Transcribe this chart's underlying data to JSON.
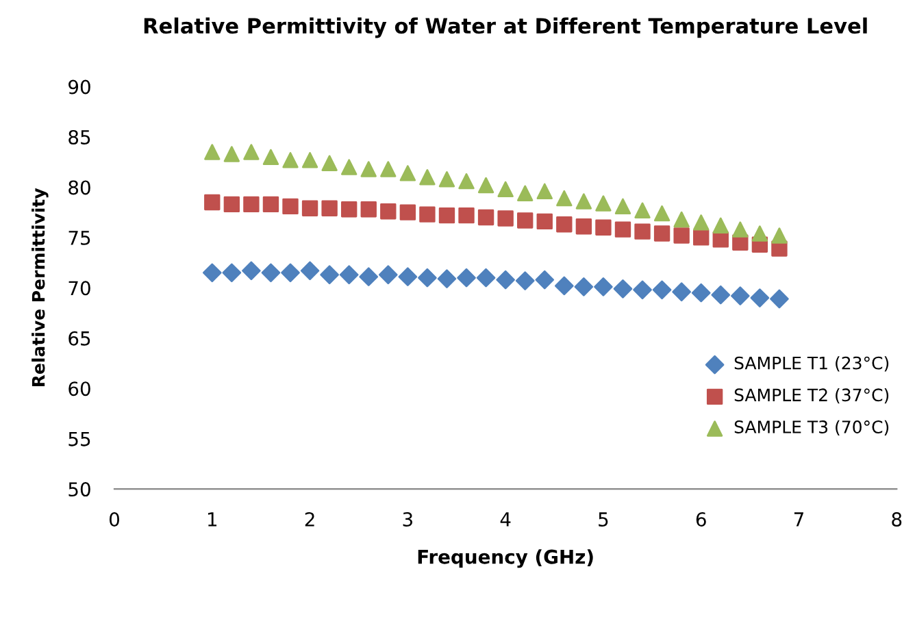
{
  "chart_data": {
    "type": "scatter",
    "title": "Relative Permittivity of Water at Different Temperature Level",
    "xlabel": "Frequency (GHz)",
    "ylabel": "Relative Permittivity",
    "x": [
      1.0,
      1.2,
      1.4,
      1.6,
      1.8,
      2.0,
      2.2,
      2.4,
      2.6,
      2.8,
      3.0,
      3.2,
      3.4,
      3.6,
      3.8,
      4.0,
      4.2,
      4.4,
      4.6,
      4.8,
      5.0,
      5.2,
      5.4,
      5.6,
      5.8,
      6.0,
      6.2,
      6.4,
      6.6,
      6.8
    ],
    "series": [
      {
        "name": "SAMPLE T1 (23°C)",
        "color": "#4f81bd",
        "marker": "diamond",
        "values": [
          71.5,
          71.5,
          71.7,
          71.5,
          71.5,
          71.7,
          71.3,
          71.3,
          71.1,
          71.3,
          71.1,
          71.0,
          70.9,
          71.0,
          71.0,
          70.8,
          70.7,
          70.8,
          70.2,
          70.1,
          70.1,
          69.9,
          69.8,
          69.8,
          69.6,
          69.5,
          69.3,
          69.2,
          69.0,
          68.9
        ]
      },
      {
        "name": "SAMPLE T2 (37°C)",
        "color": "#c0504d",
        "marker": "square",
        "values": [
          78.5,
          78.3,
          78.3,
          78.3,
          78.1,
          77.9,
          77.9,
          77.8,
          77.8,
          77.6,
          77.5,
          77.3,
          77.2,
          77.2,
          77.0,
          76.9,
          76.7,
          76.6,
          76.3,
          76.1,
          76.0,
          75.8,
          75.6,
          75.4,
          75.2,
          75.0,
          74.8,
          74.5,
          74.3,
          73.9
        ]
      },
      {
        "name": "SAMPLE T3 (70°C)",
        "color": "#9bbb59",
        "marker": "triangle",
        "values": [
          83.5,
          83.3,
          83.5,
          83.0,
          82.7,
          82.7,
          82.4,
          82.0,
          81.8,
          81.8,
          81.4,
          81.0,
          80.8,
          80.6,
          80.2,
          79.8,
          79.4,
          79.6,
          78.9,
          78.6,
          78.4,
          78.1,
          77.7,
          77.4,
          76.8,
          76.5,
          76.2,
          75.8,
          75.4,
          75.2
        ]
      }
    ],
    "xlim": [
      0,
      8
    ],
    "xticks": [
      0,
      1,
      2,
      3,
      4,
      5,
      6,
      7,
      8
    ],
    "ylim": [
      50,
      90
    ],
    "yticks": [
      50,
      55,
      60,
      65,
      70,
      75,
      80,
      85,
      90
    ],
    "grid": false,
    "legend": "right"
  }
}
